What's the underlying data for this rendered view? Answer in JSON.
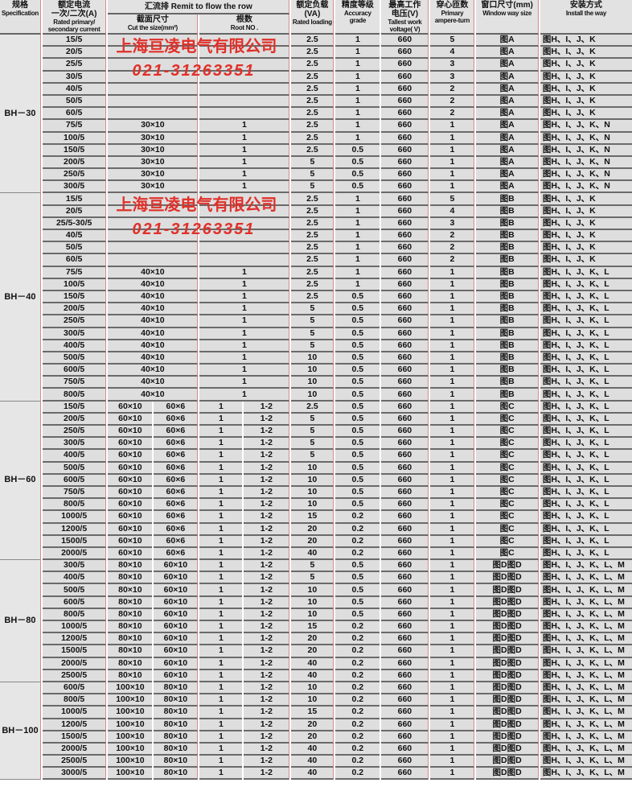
{
  "header": {
    "spec_cn": "规格",
    "spec_en": "Specification",
    "current_cn": "额定电流",
    "current_cn2": "一次/二次(A)",
    "current_en": "Rated primary/ secondary current",
    "busbar": "汇流排 Remit to flow the row",
    "size_cn": "截面尺寸",
    "size_en": "Cut the size(mm²)",
    "root_cn": "根数",
    "root_en": "Root NO .",
    "va_cn": "额定负载",
    "va_cn2": "(VA)",
    "va_en": "Rated loading",
    "acc_cn": "精度等级",
    "acc_en": "Accuracy grade",
    "volt_cn": "最高工作",
    "volt_cn2": "电压(V)",
    "volt_en": "Tallest work voltage( V)",
    "turns_cn": "穿心匝数",
    "turns_en": "Primary ampere-turn",
    "window_cn": "窗口尺寸(mm)",
    "window_en": "Window way size",
    "install_cn": "安装方式",
    "install_en": "Install the way"
  },
  "watermark": {
    "company": "上海亘凌电气有限公司",
    "phone": "021-31263351",
    "color": "#e0302a"
  },
  "groups": [
    {
      "spec": "BH－30",
      "rows": [
        [
          "15/5",
          "",
          "-",
          "",
          "-",
          "2.5",
          "1",
          "660",
          "5",
          "图A",
          "图H、I、J、K"
        ],
        [
          "20/5",
          "",
          "-",
          "",
          "-",
          "2.5",
          "1",
          "660",
          "4",
          "图A",
          "图H、I、J、K"
        ],
        [
          "25/5",
          "",
          "-",
          "",
          "-",
          "2.5",
          "1",
          "660",
          "3",
          "图A",
          "图H、I、J、K"
        ],
        [
          "30/5",
          "",
          "-",
          "",
          "-",
          "2.5",
          "1",
          "660",
          "3",
          "图A",
          "图H、I、J、K"
        ],
        [
          "40/5",
          "",
          "-",
          "",
          "-",
          "2.5",
          "1",
          "660",
          "2",
          "图A",
          "图H、I、J、K"
        ],
        [
          "50/5",
          "",
          "-",
          "",
          "-",
          "2.5",
          "1",
          "660",
          "2",
          "图A",
          "图H、I、J、K"
        ],
        [
          "60/5",
          "",
          "-",
          "",
          "-",
          "2.5",
          "1",
          "660",
          "2",
          "图A",
          "图H、I、J、K"
        ],
        [
          "75/5",
          "30×10",
          "-",
          "1",
          "-",
          "2.5",
          "1",
          "660",
          "1",
          "图A",
          "图H、I、J、K、N"
        ],
        [
          "100/5",
          "30×10",
          "-",
          "1",
          "-",
          "2.5",
          "1",
          "660",
          "1",
          "图A",
          "图H、I、J、K、N"
        ],
        [
          "150/5",
          "30×10",
          "-",
          "1",
          "-",
          "2.5",
          "0.5",
          "660",
          "1",
          "图A",
          "图H、I、J、K、N"
        ],
        [
          "200/5",
          "30×10",
          "-",
          "1",
          "-",
          "5",
          "0.5",
          "660",
          "1",
          "图A",
          "图H、I、J、K、N"
        ],
        [
          "250/5",
          "30×10",
          "-",
          "1",
          "-",
          "5",
          "0.5",
          "660",
          "1",
          "图A",
          "图H、I、J、K、N"
        ],
        [
          "300/5",
          "30×10",
          "-",
          "1",
          "-",
          "5",
          "0.5",
          "660",
          "1",
          "图A",
          "图H、I、J、K、N"
        ]
      ]
    },
    {
      "spec": "BH－40",
      "rows": [
        [
          "15/5",
          "",
          "-",
          "",
          "-",
          "2.5",
          "1",
          "660",
          "5",
          "图B",
          "图H、I、J、K"
        ],
        [
          "20/5",
          "",
          "-",
          "",
          "-",
          "2.5",
          "1",
          "660",
          "4",
          "图B",
          "图H、I、J、K"
        ],
        [
          "25/5-30/5",
          "",
          "-",
          "",
          "-",
          "2.5",
          "1",
          "660",
          "3",
          "图B",
          "图H、I、J、K"
        ],
        [
          "40/5",
          "",
          "-",
          "",
          "-",
          "2.5",
          "1",
          "660",
          "2",
          "图B",
          "图H、I、J、K"
        ],
        [
          "50/5",
          "",
          "-",
          "",
          "-",
          "2.5",
          "1",
          "660",
          "2",
          "图B",
          "图H、I、J、K"
        ],
        [
          "60/5",
          "",
          "-",
          "",
          "-",
          "2.5",
          "1",
          "660",
          "2",
          "图B",
          "图H、I、J、K"
        ],
        [
          "75/5",
          "40×10",
          "-",
          "1",
          "-",
          "2.5",
          "1",
          "660",
          "1",
          "图B",
          "图H、I、J、K、L"
        ],
        [
          "100/5",
          "40×10",
          "-",
          "1",
          "-",
          "2.5",
          "1",
          "660",
          "1",
          "图B",
          "图H、I、J、K、L"
        ],
        [
          "150/5",
          "40×10",
          "-",
          "1",
          "-",
          "2.5",
          "0.5",
          "660",
          "1",
          "图B",
          "图H、I、J、K、L"
        ],
        [
          "200/5",
          "40×10",
          "-",
          "1",
          "-",
          "5",
          "0.5",
          "660",
          "1",
          "图B",
          "图H、I、J、K、L"
        ],
        [
          "250/5",
          "40×10",
          "-",
          "1",
          "-",
          "5",
          "0.5",
          "660",
          "1",
          "图B",
          "图H、I、J、K、L"
        ],
        [
          "300/5",
          "40×10",
          "-",
          "1",
          "-",
          "5",
          "0.5",
          "660",
          "1",
          "图B",
          "图H、I、J、K、L"
        ],
        [
          "400/5",
          "40×10",
          "-",
          "1",
          "-",
          "5",
          "0.5",
          "660",
          "1",
          "图B",
          "图H、I、J、K、L"
        ],
        [
          "500/5",
          "40×10",
          "-",
          "1",
          "-",
          "10",
          "0.5",
          "660",
          "1",
          "图B",
          "图H、I、J、K、L"
        ],
        [
          "600/5",
          "40×10",
          "-",
          "1",
          "-",
          "10",
          "0.5",
          "660",
          "1",
          "图B",
          "图H、I、J、K、L"
        ],
        [
          "750/5",
          "40×10",
          "-",
          "1",
          "-",
          "10",
          "0.5",
          "660",
          "1",
          "图B",
          "图H、I、J、K、L"
        ],
        [
          "800/5",
          "40×10",
          "-",
          "1",
          "-",
          "10",
          "0.5",
          "660",
          "1",
          "图B",
          "图H、I、J、K、L"
        ]
      ]
    },
    {
      "spec": "BH－60",
      "rows": [
        [
          "150/5",
          "60×10",
          "60×6",
          "1",
          "1-2",
          "2.5",
          "0.5",
          "660",
          "1",
          "图C",
          "图H、I、J、K、L"
        ],
        [
          "200/5",
          "60×10",
          "60×6",
          "1",
          "1-2",
          "5",
          "0.5",
          "660",
          "1",
          "图C",
          "图H、I、J、K、L"
        ],
        [
          "250/5",
          "60×10",
          "60×6",
          "1",
          "1-2",
          "5",
          "0.5",
          "660",
          "1",
          "图C",
          "图H、I、J、K、L"
        ],
        [
          "300/5",
          "60×10",
          "60×6",
          "1",
          "1-2",
          "5",
          "0.5",
          "660",
          "1",
          "图C",
          "图H、I、J、K、L"
        ],
        [
          "400/5",
          "60×10",
          "60×6",
          "1",
          "1-2",
          "5",
          "0.5",
          "660",
          "1",
          "图C",
          "图H、I、J、K、L"
        ],
        [
          "500/5",
          "60×10",
          "60×6",
          "1",
          "1-2",
          "10",
          "0.5",
          "660",
          "1",
          "图C",
          "图H、I、J、K、L"
        ],
        [
          "600/5",
          "60×10",
          "60×6",
          "1",
          "1-2",
          "10",
          "0.5",
          "660",
          "1",
          "图C",
          "图H、I、J、K、L"
        ],
        [
          "750/5",
          "60×10",
          "60×6",
          "1",
          "1-2",
          "10",
          "0.5",
          "660",
          "1",
          "图C",
          "图H、I、J、K、L"
        ],
        [
          "800/5",
          "60×10",
          "60×6",
          "1",
          "1-2",
          "10",
          "0.5",
          "660",
          "1",
          "图C",
          "图H、I、J、K、L"
        ],
        [
          "1000/5",
          "60×10",
          "60×6",
          "1",
          "1-2",
          "15",
          "0.2",
          "660",
          "1",
          "图C",
          "图H、I、J、K、L"
        ],
        [
          "1200/5",
          "60×10",
          "60×6",
          "1",
          "1-2",
          "20",
          "0.2",
          "660",
          "1",
          "图C",
          "图H、I、J、K、L"
        ],
        [
          "1500/5",
          "60×10",
          "60×6",
          "1",
          "1-2",
          "20",
          "0.2",
          "660",
          "1",
          "图C",
          "图H、I、J、K、L"
        ],
        [
          "2000/5",
          "60×10",
          "60×6",
          "1",
          "1-2",
          "40",
          "0.2",
          "660",
          "1",
          "图C",
          "图H、I、J、K、L"
        ]
      ]
    },
    {
      "spec": "BH－80",
      "rows": [
        [
          "300/5",
          "80×10",
          "60×10",
          "1",
          "1-2",
          "5",
          "0.5",
          "660",
          "1",
          "图D图D",
          "图H、I、J、K、L、M"
        ],
        [
          "400/5",
          "80×10",
          "60×10",
          "1",
          "1-2",
          "5",
          "0.5",
          "660",
          "1",
          "图D图D",
          "图H、I、J、K、L、M"
        ],
        [
          "500/5",
          "80×10",
          "60×10",
          "1",
          "1-2",
          "10",
          "0.5",
          "660",
          "1",
          "图D图D",
          "图H、I、J、K、L、M"
        ],
        [
          "600/5",
          "80×10",
          "60×10",
          "1",
          "1-2",
          "10",
          "0.5",
          "660",
          "1",
          "图D图D",
          "图H、I、J、K、L、M"
        ],
        [
          "800/5",
          "80×10",
          "60×10",
          "1",
          "1-2",
          "10",
          "0.5",
          "660",
          "1",
          "图D图D",
          "图H、I、J、K、L、M"
        ],
        [
          "1000/5",
          "80×10",
          "60×10",
          "1",
          "1-2",
          "15",
          "0.2",
          "660",
          "1",
          "图D图D",
          "图H、I、J、K、L、M"
        ],
        [
          "1200/5",
          "80×10",
          "60×10",
          "1",
          "1-2",
          "20",
          "0.2",
          "660",
          "1",
          "图D图D",
          "图H、I、J、K、L、M"
        ],
        [
          "1500/5",
          "80×10",
          "60×10",
          "1",
          "1-2",
          "20",
          "0.2",
          "660",
          "1",
          "图D图D",
          "图H、I、J、K、L、M"
        ],
        [
          "2000/5",
          "80×10",
          "60×10",
          "1",
          "1-2",
          "40",
          "0.2",
          "660",
          "1",
          "图D图D",
          "图H、I、J、K、L、M"
        ],
        [
          "2500/5",
          "80×10",
          "60×10",
          "1",
          "1-2",
          "40",
          "0.2",
          "660",
          "1",
          "图D图D",
          "图H、I、J、K、L、M"
        ]
      ]
    },
    {
      "spec": "BH－100",
      "rows": [
        [
          "600/5",
          "100×10",
          "80×10",
          "1",
          "1-2",
          "10",
          "0.2",
          "660",
          "1",
          "图D图D",
          "图H、I、J、K、L、M"
        ],
        [
          "800/5",
          "100×10",
          "80×10",
          "1",
          "1-2",
          "10",
          "0.2",
          "660",
          "1",
          "图D图D",
          "图H、I、J、K、L、M"
        ],
        [
          "1000/5",
          "100×10",
          "80×10",
          "1",
          "1-2",
          "15",
          "0.2",
          "660",
          "1",
          "图D图D",
          "图H、I、J、K、L、M"
        ],
        [
          "1200/5",
          "100×10",
          "80×10",
          "1",
          "1-2",
          "20",
          "0.2",
          "660",
          "1",
          "图D图D",
          "图H、I、J、K、L、M"
        ],
        [
          "1500/5",
          "100×10",
          "80×10",
          "1",
          "1-2",
          "20",
          "0.2",
          "660",
          "1",
          "图D图D",
          "图H、I、J、K、L、M"
        ],
        [
          "2000/5",
          "100×10",
          "80×10",
          "1",
          "1-2",
          "40",
          "0.2",
          "660",
          "1",
          "图D图D",
          "图H、I、J、K、L、M"
        ],
        [
          "2500/5",
          "100×10",
          "80×10",
          "1",
          "1-2",
          "40",
          "0.2",
          "660",
          "1",
          "图D图D",
          "图H、I、J、K、L、M"
        ],
        [
          "3000/5",
          "100×10",
          "80×10",
          "1",
          "1-2",
          "40",
          "0.2",
          "660",
          "1",
          "图D图D",
          "图H、I、J、K、L、M"
        ]
      ]
    }
  ]
}
